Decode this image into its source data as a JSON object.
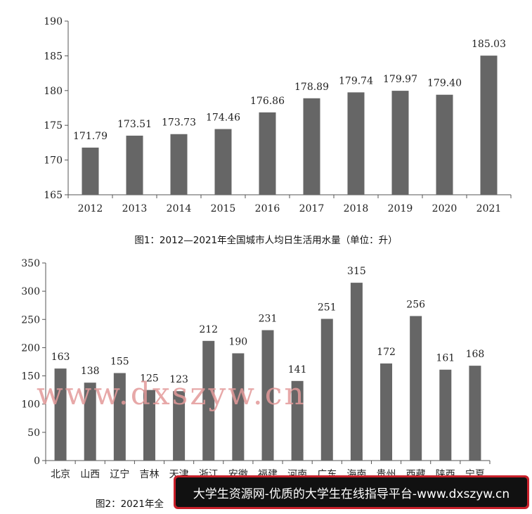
{
  "chart_data": [
    {
      "type": "bar",
      "title": "图1：2012—2021年全国城市人均日生活用水量（单位：升）",
      "categories": [
        "2012",
        "2013",
        "2014",
        "2015",
        "2016",
        "2017",
        "2018",
        "2019",
        "2020",
        "2021"
      ],
      "values": [
        171.79,
        173.51,
        173.73,
        174.46,
        176.86,
        178.89,
        179.74,
        179.97,
        179.4,
        185.03
      ],
      "value_labels": [
        "171.79",
        "173.51",
        "173.73",
        "174.46",
        "176.86",
        "178.89",
        "179.74",
        "179.97",
        "179.40",
        "185.03"
      ],
      "ylim": [
        165,
        190
      ],
      "yticks": [
        "165",
        "170",
        "175",
        "180",
        "185",
        "190"
      ],
      "bar_color": "#666666",
      "grid": false
    },
    {
      "type": "bar",
      "title": "图2：2021年全",
      "categories": [
        "北京",
        "山西",
        "辽宁",
        "吉林",
        "天津",
        "浙江",
        "安徽",
        "福建",
        "河南",
        "广东",
        "海南",
        "贵州",
        "西藏",
        "陕西",
        "宁夏"
      ],
      "values": [
        163,
        138,
        155,
        125,
        123,
        212,
        190,
        231,
        141,
        251,
        315,
        172,
        256,
        161,
        168
      ],
      "value_labels": [
        "163",
        "138",
        "155",
        "125",
        "123",
        "212",
        "190",
        "231",
        "141",
        "251",
        "315",
        "172",
        "256",
        "161",
        "168"
      ],
      "ylim": [
        0,
        350
      ],
      "yticks": [
        "0",
        "50",
        "100",
        "150",
        "200",
        "250",
        "300",
        "350"
      ],
      "bar_color": "#666666",
      "grid": false
    }
  ],
  "watermark": "www.dxszyw.cn",
  "banner": {
    "text": "大学生资源网-优质的大学生在线指导平台-www.dxszyw.cn",
    "border_color": "#c9202a"
  }
}
